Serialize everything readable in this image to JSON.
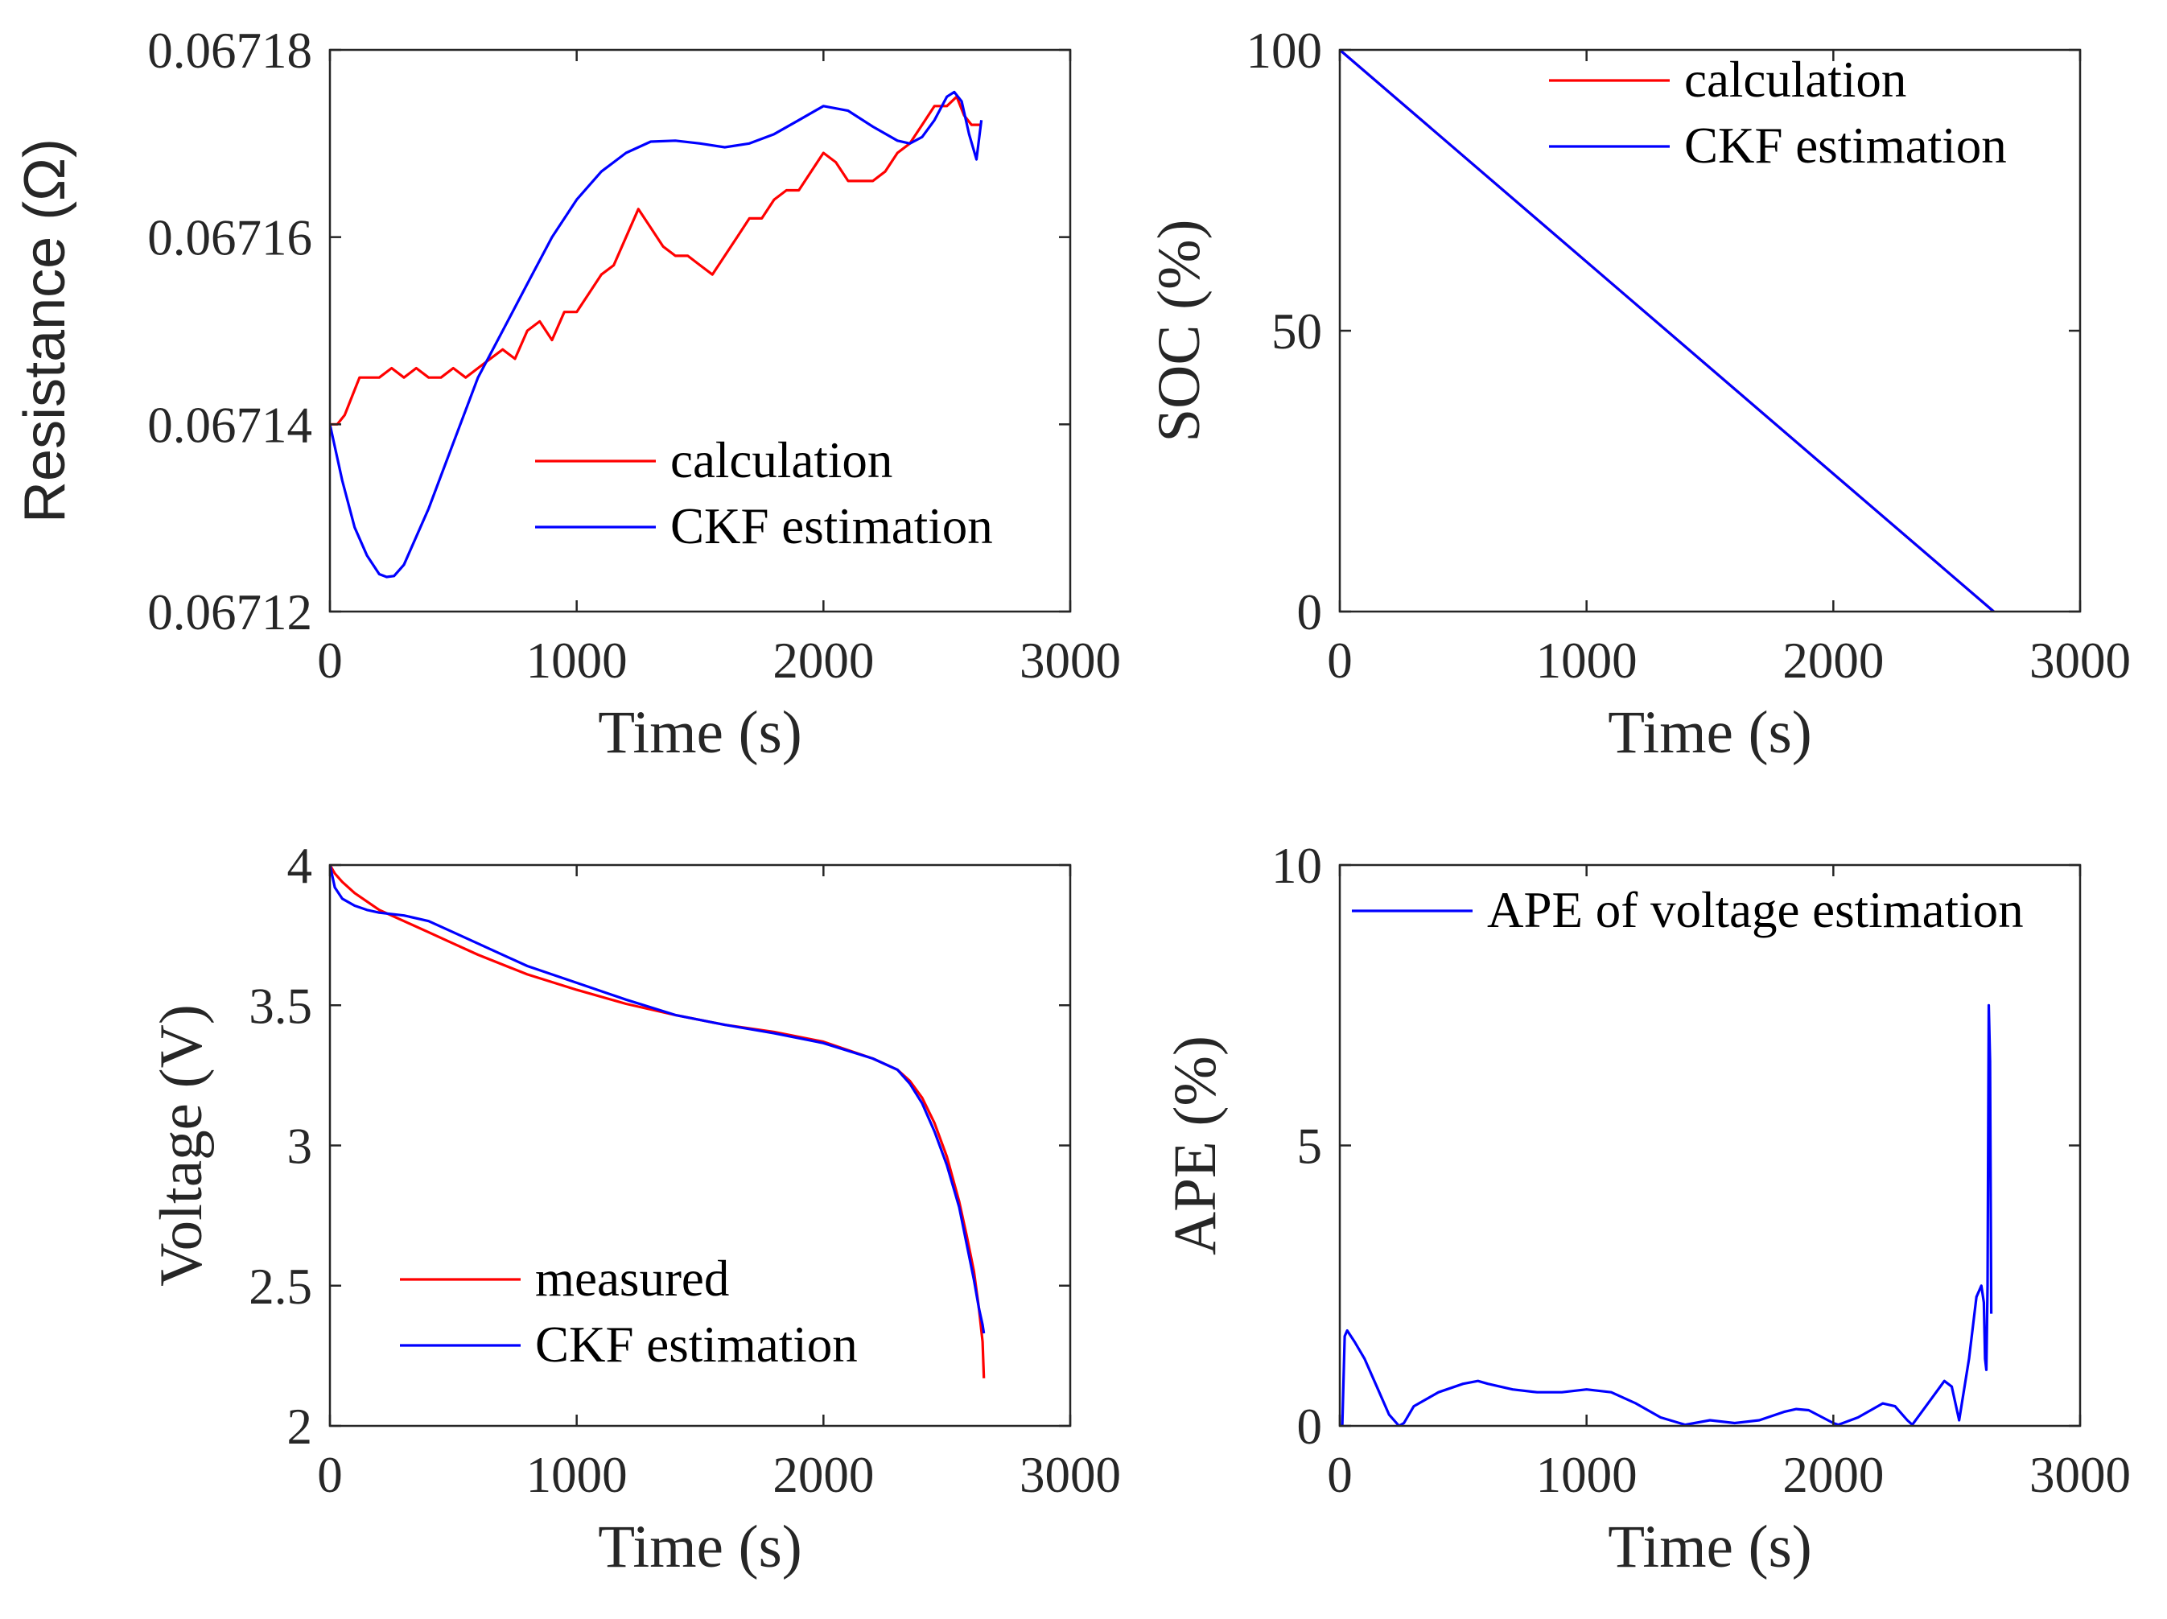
{
  "chart_data": [
    {
      "type": "line",
      "id": "resistance",
      "title": "",
      "xlabel": "Time (s)",
      "ylabel": "Resistance (Ω)",
      "xlim": [
        0,
        3000
      ],
      "ylim": [
        0.06712,
        0.06718
      ],
      "xticks": [
        0,
        1000,
        2000,
        3000
      ],
      "yticks": [
        0.06712,
        0.06714,
        0.06716,
        0.06718
      ],
      "xtick_labels": [
        "0",
        "1000",
        "2000",
        "3000"
      ],
      "ytick_labels": [
        "0.06712",
        "0.06714",
        "0.06716",
        "0.06718"
      ],
      "legend_position": "bottom-right",
      "series": [
        {
          "name": "calculation",
          "color": "#ff0000",
          "x": [
            0,
            30,
            60,
            90,
            120,
            150,
            200,
            250,
            300,
            350,
            400,
            450,
            500,
            550,
            600,
            650,
            700,
            750,
            800,
            850,
            900,
            950,
            1000,
            1050,
            1100,
            1150,
            1200,
            1250,
            1300,
            1350,
            1400,
            1450,
            1500,
            1550,
            1600,
            1650,
            1700,
            1750,
            1800,
            1850,
            1900,
            1950,
            2000,
            2050,
            2100,
            2150,
            2200,
            2250,
            2300,
            2350,
            2400,
            2450,
            2500,
            2540,
            2570,
            2600,
            2640
          ],
          "y": [
            0.06714,
            0.06714,
            0.067141,
            0.067143,
            0.067145,
            0.067145,
            0.067145,
            0.067146,
            0.067145,
            0.067146,
            0.067145,
            0.067145,
            0.067146,
            0.067145,
            0.067146,
            0.067147,
            0.067148,
            0.067147,
            0.06715,
            0.067151,
            0.067149,
            0.067152,
            0.067152,
            0.067154,
            0.067156,
            0.067157,
            0.06716,
            0.067163,
            0.067161,
            0.067159,
            0.067158,
            0.067158,
            0.067157,
            0.067156,
            0.067158,
            0.06716,
            0.067162,
            0.067162,
            0.067164,
            0.067165,
            0.067165,
            0.067167,
            0.067169,
            0.067168,
            0.067166,
            0.067166,
            0.067166,
            0.067167,
            0.067169,
            0.06717,
            0.067172,
            0.067174,
            0.067174,
            0.067175,
            0.067173,
            0.067172,
            0.067172
          ]
        },
        {
          "name": "CKF estimation",
          "color": "#0000ff",
          "x": [
            0,
            50,
            100,
            150,
            200,
            230,
            260,
            300,
            400,
            500,
            600,
            700,
            800,
            900,
            1000,
            1100,
            1200,
            1300,
            1400,
            1500,
            1600,
            1700,
            1800,
            1900,
            2000,
            2100,
            2200,
            2300,
            2350,
            2400,
            2450,
            2500,
            2530,
            2560,
            2590,
            2620,
            2640
          ],
          "y": [
            0.06714,
            0.067134,
            0.067129,
            0.067126,
            0.067124,
            0.0671237,
            0.0671238,
            0.067125,
            0.067131,
            0.067138,
            0.067145,
            0.06715,
            0.067155,
            0.06716,
            0.067164,
            0.067167,
            0.067169,
            0.0671702,
            0.0671703,
            0.06717,
            0.0671696,
            0.06717,
            0.067171,
            0.0671725,
            0.067174,
            0.0671735,
            0.0671718,
            0.0671703,
            0.06717,
            0.0671707,
            0.0671725,
            0.067175,
            0.0671755,
            0.0671745,
            0.067171,
            0.0671683,
            0.0671725
          ]
        }
      ]
    },
    {
      "type": "line",
      "id": "soc",
      "title": "",
      "xlabel": "Time (s)",
      "ylabel": "SOC (%)",
      "xlim": [
        0,
        3000
      ],
      "ylim": [
        0,
        100
      ],
      "xticks": [
        0,
        1000,
        2000,
        3000
      ],
      "yticks": [
        0,
        50,
        100
      ],
      "xtick_labels": [
        "0",
        "1000",
        "2000",
        "3000"
      ],
      "ytick_labels": [
        "0",
        "50",
        "100"
      ],
      "legend_position": "top-right",
      "series": [
        {
          "name": "calculation",
          "color": "#ff0000",
          "x": [
            0,
            2650
          ],
          "y": [
            100,
            0
          ]
        },
        {
          "name": "CKF estimation",
          "color": "#0000ff",
          "x": [
            0,
            2650
          ],
          "y": [
            100,
            0
          ]
        }
      ]
    },
    {
      "type": "line",
      "id": "voltage",
      "title": "",
      "xlabel": "Time (s)",
      "ylabel": "Voltage (V)",
      "xlim": [
        0,
        3000
      ],
      "ylim": [
        2,
        4
      ],
      "xticks": [
        0,
        1000,
        2000,
        3000
      ],
      "yticks": [
        2,
        2.5,
        3,
        3.5,
        4
      ],
      "xtick_labels": [
        "0",
        "1000",
        "2000",
        "3000"
      ],
      "ytick_labels": [
        "2",
        "2.5",
        "3",
        "3.5",
        "4"
      ],
      "legend_position": "bottom-left",
      "series": [
        {
          "name": "measured",
          "color": "#ff0000",
          "x": [
            0,
            20,
            50,
            100,
            150,
            200,
            300,
            400,
            500,
            600,
            800,
            1000,
            1200,
            1400,
            1600,
            1800,
            2000,
            2200,
            2300,
            2350,
            2400,
            2450,
            2500,
            2550,
            2580,
            2610,
            2630,
            2645,
            2650
          ],
          "y": [
            4.0,
            3.97,
            3.94,
            3.9,
            3.87,
            3.84,
            3.8,
            3.76,
            3.72,
            3.68,
            3.61,
            3.555,
            3.505,
            3.465,
            3.43,
            3.405,
            3.37,
            3.31,
            3.27,
            3.23,
            3.17,
            3.08,
            2.96,
            2.8,
            2.68,
            2.55,
            2.42,
            2.3,
            2.17
          ]
        },
        {
          "name": "CKF estimation",
          "color": "#0000ff",
          "x": [
            0,
            20,
            50,
            100,
            150,
            200,
            300,
            400,
            500,
            600,
            800,
            1000,
            1200,
            1400,
            1600,
            1800,
            2000,
            2200,
            2300,
            2350,
            2400,
            2450,
            2500,
            2550,
            2580,
            2610,
            2630,
            2645,
            2650
          ],
          "y": [
            4.0,
            3.92,
            3.88,
            3.855,
            3.84,
            3.83,
            3.82,
            3.8,
            3.76,
            3.72,
            3.64,
            3.58,
            3.52,
            3.465,
            3.43,
            3.4,
            3.365,
            3.31,
            3.27,
            3.22,
            3.15,
            3.05,
            2.93,
            2.78,
            2.65,
            2.52,
            2.42,
            2.36,
            2.33
          ]
        }
      ]
    },
    {
      "type": "line",
      "id": "ape",
      "title": "",
      "xlabel": "Time (s)",
      "ylabel": "APE (%)",
      "xlim": [
        0,
        3000
      ],
      "ylim": [
        0,
        10
      ],
      "xticks": [
        0,
        1000,
        2000,
        3000
      ],
      "yticks": [
        0,
        5,
        10
      ],
      "xtick_labels": [
        "0",
        "1000",
        "2000",
        "3000"
      ],
      "ytick_labels": [
        "0",
        "5",
        "10"
      ],
      "legend_position": "top",
      "series": [
        {
          "name": "APE of voltage estimation",
          "color": "#0000ff",
          "x": [
            0,
            10,
            20,
            30,
            60,
            100,
            150,
            200,
            240,
            260,
            300,
            400,
            500,
            560,
            600,
            700,
            800,
            900,
            1000,
            1100,
            1200,
            1300,
            1400,
            1500,
            1600,
            1700,
            1800,
            1850,
            1900,
            2000,
            2020,
            2100,
            2200,
            2250,
            2300,
            2320,
            2400,
            2450,
            2480,
            2510,
            2550,
            2580,
            2600,
            2610,
            2615,
            2620,
            2625,
            2630,
            2635,
            2640
          ],
          "y": [
            0,
            0,
            1.6,
            1.7,
            1.5,
            1.2,
            0.7,
            0.2,
            0.0,
            0.05,
            0.35,
            0.6,
            0.75,
            0.8,
            0.75,
            0.65,
            0.6,
            0.6,
            0.65,
            0.6,
            0.4,
            0.15,
            0.02,
            0.1,
            0.05,
            0.1,
            0.25,
            0.3,
            0.28,
            0.05,
            0.02,
            0.15,
            0.4,
            0.35,
            0.1,
            0.02,
            0.5,
            0.8,
            0.7,
            0.1,
            1.2,
            2.3,
            2.5,
            2.2,
            1.2,
            1.0,
            2.5,
            7.5,
            6.5,
            2.0
          ]
        }
      ]
    }
  ]
}
